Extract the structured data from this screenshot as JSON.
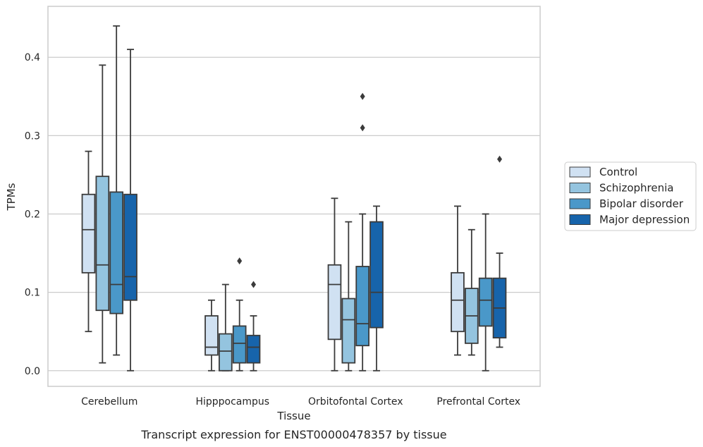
{
  "chart_data": {
    "type": "boxplot",
    "caption": "Transcript expression for ENST00000478357 by tissue",
    "xlabel": "Tissue",
    "ylabel": "TPMs",
    "ylim": [
      -0.02,
      0.465
    ],
    "yticks": [
      "0.0",
      "0.1",
      "0.2",
      "0.3",
      "0.4"
    ],
    "ytick_values": [
      0.0,
      0.1,
      0.2,
      0.3,
      0.4
    ],
    "grid": true,
    "legend_position": "right",
    "categories": [
      "Cerebellum",
      "Hipppocampus",
      "Orbitofontal Cortex",
      "Prefrontal Cortex"
    ],
    "series": [
      {
        "name": "Control",
        "color": "#d0e1f2",
        "boxes": [
          {
            "whislo": 0.05,
            "q1": 0.125,
            "med": 0.18,
            "q3": 0.225,
            "whishi": 0.28,
            "fliers": []
          },
          {
            "whislo": 0.0,
            "q1": 0.02,
            "med": 0.03,
            "q3": 0.07,
            "whishi": 0.09,
            "fliers": []
          },
          {
            "whislo": 0.0,
            "q1": 0.04,
            "med": 0.11,
            "q3": 0.135,
            "whishi": 0.22,
            "fliers": []
          },
          {
            "whislo": 0.02,
            "q1": 0.05,
            "med": 0.09,
            "q3": 0.125,
            "whishi": 0.21,
            "fliers": []
          }
        ]
      },
      {
        "name": "Schizophrenia",
        "color": "#94c4df",
        "boxes": [
          {
            "whislo": 0.01,
            "q1": 0.077,
            "med": 0.135,
            "q3": 0.248,
            "whishi": 0.39,
            "fliers": []
          },
          {
            "whislo": 0.0,
            "q1": 0.0,
            "med": 0.025,
            "q3": 0.047,
            "whishi": 0.11,
            "fliers": []
          },
          {
            "whislo": 0.0,
            "q1": 0.01,
            "med": 0.065,
            "q3": 0.092,
            "whishi": 0.19,
            "fliers": []
          },
          {
            "whislo": 0.02,
            "q1": 0.035,
            "med": 0.07,
            "q3": 0.105,
            "whishi": 0.18,
            "fliers": []
          }
        ]
      },
      {
        "name": "Bipolar disorder",
        "color": "#4a98c9",
        "boxes": [
          {
            "whislo": 0.02,
            "q1": 0.073,
            "med": 0.11,
            "q3": 0.228,
            "whishi": 0.44,
            "fliers": []
          },
          {
            "whislo": 0.0,
            "q1": 0.01,
            "med": 0.035,
            "q3": 0.057,
            "whishi": 0.09,
            "fliers": [
              0.14
            ]
          },
          {
            "whislo": 0.0,
            "q1": 0.032,
            "med": 0.06,
            "q3": 0.133,
            "whishi": 0.2,
            "fliers": [
              0.31,
              0.35
            ]
          },
          {
            "whislo": 0.0,
            "q1": 0.057,
            "med": 0.09,
            "q3": 0.118,
            "whishi": 0.2,
            "fliers": []
          }
        ]
      },
      {
        "name": "Major depression",
        "color": "#1764ab",
        "boxes": [
          {
            "whislo": 0.0,
            "q1": 0.09,
            "med": 0.12,
            "q3": 0.225,
            "whishi": 0.41,
            "fliers": []
          },
          {
            "whislo": 0.0,
            "q1": 0.01,
            "med": 0.03,
            "q3": 0.045,
            "whishi": 0.07,
            "fliers": [
              0.11
            ]
          },
          {
            "whislo": 0.0,
            "q1": 0.055,
            "med": 0.1,
            "q3": 0.19,
            "whishi": 0.21,
            "fliers": []
          },
          {
            "whislo": 0.03,
            "q1": 0.042,
            "med": 0.08,
            "q3": 0.118,
            "whishi": 0.15,
            "fliers": [
              0.27
            ]
          }
        ]
      }
    ]
  }
}
